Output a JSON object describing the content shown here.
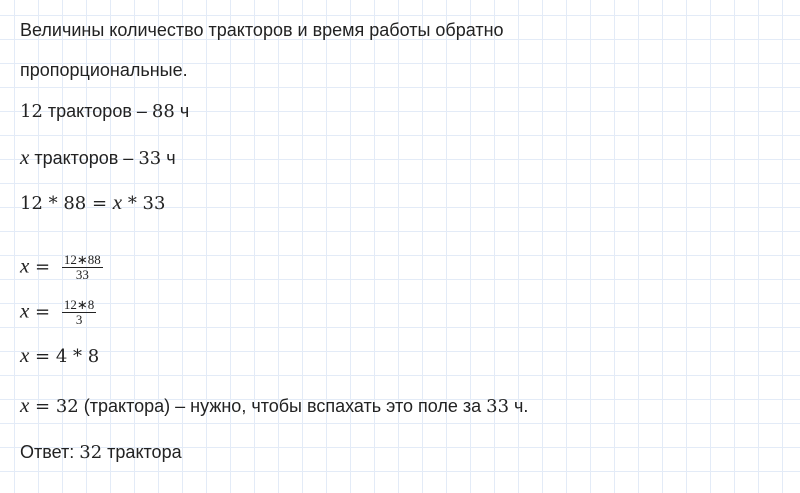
{
  "lines": {
    "l1": "Величины количество тракторов и время работы обратно",
    "l2": "пропорциональные.",
    "l3_num1": "12",
    "l3_text": " тракторов – ",
    "l3_num2": "88",
    "l3_unit": " ч",
    "l4_var": "x",
    "l4_text": " тракторов – ",
    "l4_num": "33",
    "l4_unit": " ч",
    "l5": "12 * 88 = ",
    "l5_var": "x",
    "l5_rest": " * 33",
    "f1_var": "x",
    "f1_eq": " = ",
    "f1_num": "12∗88",
    "f1_den": "33",
    "f2_var": "x",
    "f2_eq": " = ",
    "f2_num": "12∗8",
    "f2_den": "3",
    "l8_var": "x",
    "l8_rest": " = 4 * 8",
    "l9_var": "x",
    "l9_eq": " = 32",
    "l9_text": " (трактора) – нужно, чтобы вспахать это поле за ",
    "l9_num": "33",
    "l9_unit": " ч.",
    "l10_text": "Ответ: ",
    "l10_num": "32",
    "l10_unit": " трактора"
  }
}
